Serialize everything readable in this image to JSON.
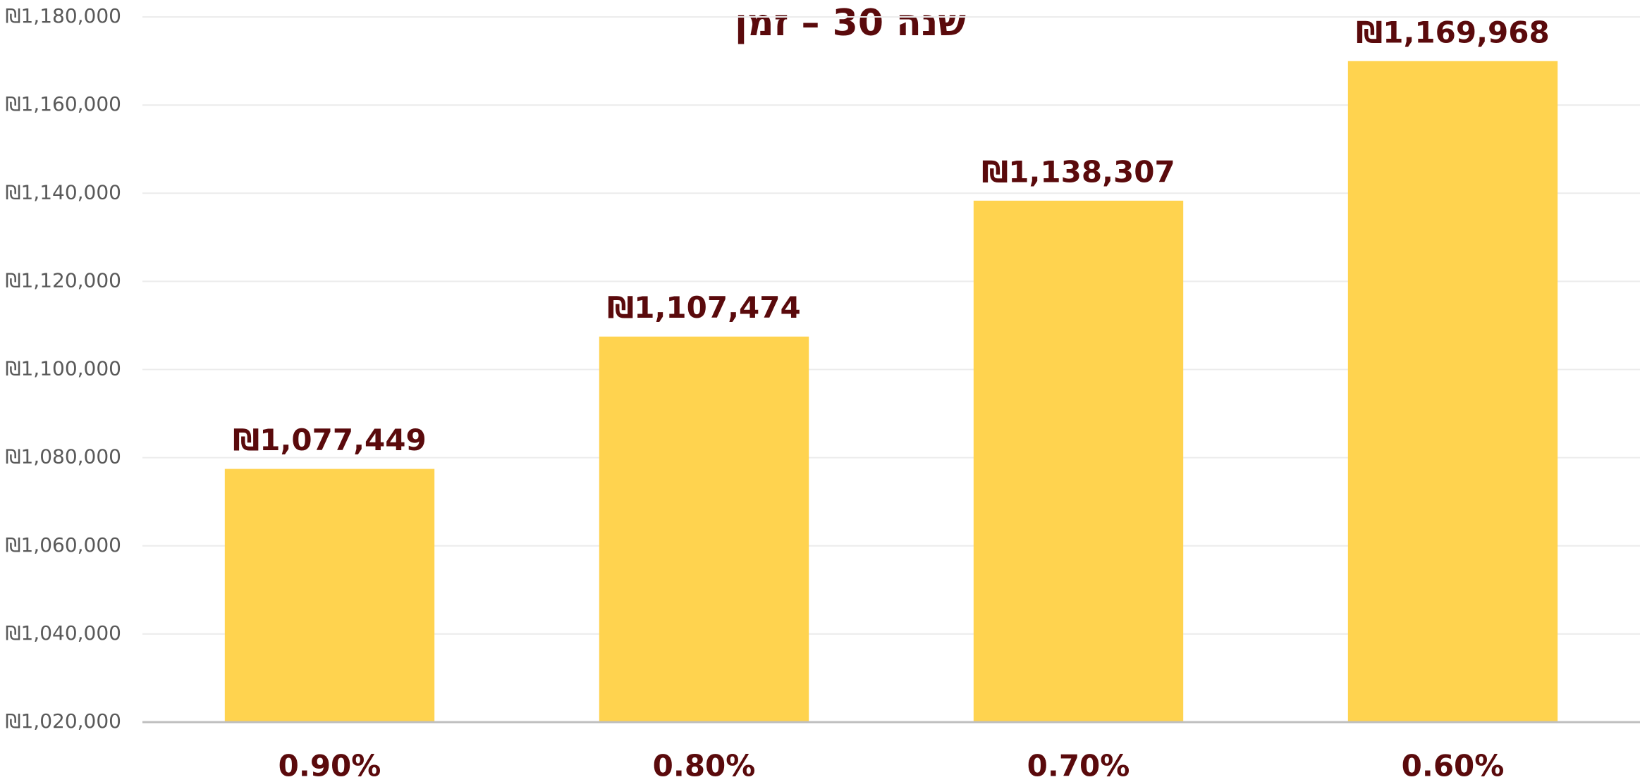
{
  "chart_data": {
    "type": "bar",
    "title": "שנה 30 – זמן",
    "categories": [
      "0.90%",
      "0.80%",
      "0.70%",
      "0.60%"
    ],
    "values": [
      1077449,
      1107474,
      1138307,
      1169968
    ],
    "value_labels": [
      "₪1,077,449",
      "₪1,107,474",
      "₪1,138,307",
      "₪1,169,968"
    ],
    "color": "#ffd34f",
    "ylim": [
      1020000,
      1180000
    ],
    "yticks": [
      {
        "value": 1020000,
        "label": "₪1,020,000"
      },
      {
        "value": 1040000,
        "label": "₪1,040,000"
      },
      {
        "value": 1060000,
        "label": "₪1,060,000"
      },
      {
        "value": 1080000,
        "label": "₪1,080,000"
      },
      {
        "value": 1100000,
        "label": "₪1,100,000"
      },
      {
        "value": 1120000,
        "label": "₪1,120,000"
      },
      {
        "value": 1140000,
        "label": "₪1,140,000"
      },
      {
        "value": 1160000,
        "label": "₪1,160,000"
      },
      {
        "value": 1180000,
        "label": "₪1,180,000"
      }
    ],
    "grid": true
  }
}
